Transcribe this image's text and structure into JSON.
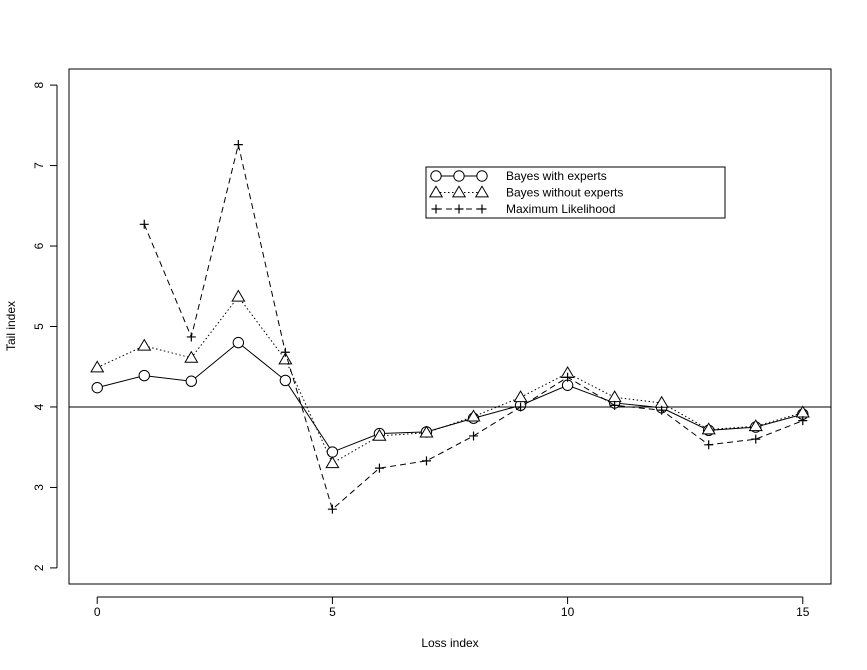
{
  "chart_data": {
    "type": "line",
    "title": "",
    "xlabel": "Loss index",
    "ylabel": "Tail index",
    "xlim": [
      -0.6,
      15.6
    ],
    "ylim": [
      1.8,
      8.2
    ],
    "xticks": [
      0,
      5,
      10,
      15
    ],
    "xtick_labels": [
      "0",
      "5",
      "10",
      "15"
    ],
    "yticks": [
      2,
      3,
      4,
      5,
      6,
      7,
      8
    ],
    "ytick_labels": [
      "2",
      "3",
      "4",
      "5",
      "6",
      "7",
      "8"
    ],
    "reference_line": 4,
    "grid": false,
    "legend_position": "top-right",
    "series": [
      {
        "name": "Bayes with experts",
        "marker": "circle",
        "line_style": "solid",
        "x": [
          0,
          1,
          2,
          3,
          4,
          5,
          6,
          7,
          8,
          9,
          10,
          11,
          12,
          13,
          14,
          15
        ],
        "values": [
          4.24,
          4.39,
          4.32,
          4.8,
          4.33,
          3.44,
          3.67,
          3.69,
          3.86,
          4.02,
          4.27,
          4.05,
          3.99,
          3.71,
          3.75,
          3.91
        ]
      },
      {
        "name": "Bayes without experts",
        "marker": "triangle",
        "line_style": "dotted",
        "x": [
          0,
          1,
          2,
          3,
          4,
          5,
          6,
          7,
          8,
          9,
          10,
          11,
          12,
          13,
          14,
          15
        ],
        "values": [
          4.49,
          4.76,
          4.61,
          5.37,
          4.59,
          3.3,
          3.64,
          3.68,
          3.88,
          4.12,
          4.42,
          4.12,
          4.05,
          3.72,
          3.76,
          3.93
        ]
      },
      {
        "name": "Maximum Likelihood",
        "marker": "plus",
        "line_style": "dashed",
        "x": [
          1,
          2,
          3,
          4,
          5,
          6,
          7,
          8,
          9,
          10,
          11,
          12,
          13,
          14,
          15
        ],
        "values": [
          6.27,
          4.87,
          7.26,
          4.68,
          2.73,
          3.24,
          3.33,
          3.64,
          4.0,
          4.37,
          4.02,
          3.96,
          3.53,
          3.6,
          3.83
        ]
      }
    ]
  }
}
